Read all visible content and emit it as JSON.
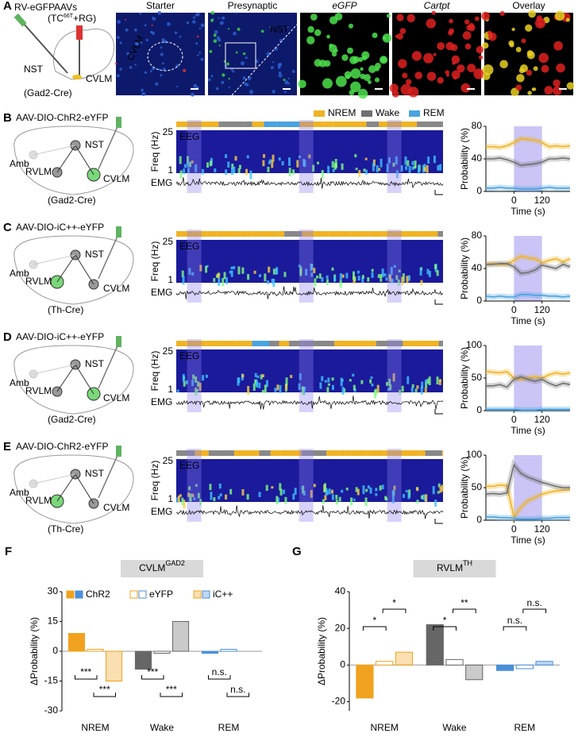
{
  "panel_a": {
    "label": "A",
    "virus": "RV-eGFP",
    "aavs": "AAVs",
    "aav_parts": [
      "(TC",
      "66T",
      "+RG)"
    ],
    "regions": [
      "NST",
      "CVLM"
    ],
    "driver": "(Gad2-Cre)",
    "images": [
      {
        "title": "Starter",
        "title_color": "#000000",
        "overlay": "CVLM"
      },
      {
        "title": "Presynaptic",
        "title_color": "#000000",
        "overlay": "NST"
      },
      {
        "title": "eGFP",
        "title_color": "#2a9d2a"
      },
      {
        "title": "Cartpt",
        "title_color": "#d01010"
      },
      {
        "title": "Overlay",
        "title_color": "#000000"
      }
    ]
  },
  "panels": [
    {
      "label": "B",
      "virus": "AAV-DIO-ChR2-eYFP",
      "driver": "(Gad2-Cre)",
      "regions": [
        {
          "name": "NST",
          "color": "#000000"
        },
        {
          "name": "RVLM",
          "color": "#000000"
        },
        {
          "name": "CVLM",
          "color": "#2a9d2a"
        },
        {
          "name": "Amb",
          "color": "#bbbbbb"
        }
      ]
    },
    {
      "label": "C",
      "virus": "AAV-DIO-iC++-eYFP",
      "driver": "(Th-Cre)",
      "regions": [
        {
          "name": "NST",
          "color": "#000000"
        },
        {
          "name": "RVLM",
          "color": "#2a9d2a"
        },
        {
          "name": "CVLM",
          "color": "#000000"
        },
        {
          "name": "Amb",
          "color": "#bbbbbb"
        }
      ]
    },
    {
      "label": "D",
      "virus": "AAV-DIO-iC++-eYFP",
      "driver": "(Gad2-Cre)",
      "regions": [
        {
          "name": "NST",
          "color": "#000000"
        },
        {
          "name": "RVLM",
          "color": "#000000"
        },
        {
          "name": "CVLM",
          "color": "#2a9d2a"
        },
        {
          "name": "Amb",
          "color": "#bbbbbb"
        }
      ]
    },
    {
      "label": "E",
      "virus": "AAV-DIO-ChR2-eYFP",
      "driver": "(Th-Cre)",
      "regions": [
        {
          "name": "NST",
          "color": "#000000"
        },
        {
          "name": "RVLM",
          "color": "#2a9d2a"
        },
        {
          "name": "CVLM",
          "color": "#000000"
        },
        {
          "name": "Amb",
          "color": "#bbbbbb"
        }
      ]
    }
  ],
  "spectrogram": {
    "freq_label": "Freq (Hz)",
    "freq_ticks": [
      25,
      1
    ],
    "eeg": "EEG",
    "emg": "EMG"
  },
  "chart_data": [
    {
      "type": "line",
      "x": [
        -120,
        -90,
        -60,
        -30,
        0,
        30,
        60,
        90,
        120,
        150,
        180,
        210,
        240
      ],
      "xlim": [
        -120,
        240
      ],
      "xticks": [
        0,
        120
      ],
      "stim_window": [
        0,
        120
      ],
      "ylim": [
        0,
        80
      ],
      "yticks": [
        0,
        40,
        80
      ],
      "xlabel": "Time (s)",
      "ylabel": "Probability (%)",
      "series": [
        {
          "name": "NREM",
          "color": "#f0b323",
          "values": [
            55,
            55,
            54,
            56,
            60,
            65,
            64,
            63,
            60,
            55,
            56,
            55,
            56
          ]
        },
        {
          "name": "Wake",
          "color": "#707070",
          "values": [
            40,
            40,
            41,
            39,
            36,
            32,
            33,
            34,
            36,
            40,
            40,
            41,
            40
          ]
        },
        {
          "name": "REM",
          "color": "#4aa3df",
          "values": [
            4,
            4,
            5,
            4,
            4,
            3,
            3,
            3,
            4,
            5,
            4,
            4,
            4
          ]
        }
      ]
    },
    {
      "type": "line",
      "x": [
        -120,
        -90,
        -60,
        -30,
        0,
        30,
        60,
        90,
        120,
        150,
        180,
        210,
        240
      ],
      "xlim": [
        -120,
        240
      ],
      "xticks": [
        0,
        120
      ],
      "stim_window": [
        0,
        120
      ],
      "ylim": [
        0,
        80
      ],
      "yticks": [
        0,
        40,
        80
      ],
      "xlabel": "Time (s)",
      "ylabel": "Probability (%)",
      "series": [
        {
          "name": "NREM",
          "color": "#f0b323",
          "values": [
            45,
            46,
            45,
            45,
            50,
            55,
            53,
            52,
            47,
            50,
            52,
            48,
            52
          ]
        },
        {
          "name": "Wake",
          "color": "#707070",
          "values": [
            45,
            45,
            46,
            46,
            42,
            34,
            35,
            38,
            44,
            42,
            40,
            45,
            42
          ]
        },
        {
          "name": "REM",
          "color": "#4aa3df",
          "values": [
            6,
            5,
            6,
            5,
            5,
            8,
            8,
            7,
            7,
            6,
            6,
            5,
            6
          ]
        }
      ]
    },
    {
      "type": "line",
      "x": [
        -120,
        -90,
        -60,
        -30,
        0,
        30,
        60,
        90,
        120,
        150,
        180,
        210,
        240
      ],
      "xlim": [
        -120,
        240
      ],
      "xticks": [
        0,
        120
      ],
      "stim_window": [
        0,
        120
      ],
      "ylim": [
        0,
        100
      ],
      "yticks": [
        0,
        50,
        100
      ],
      "xlabel": "Time (s)",
      "ylabel": "Probability (%)",
      "series": [
        {
          "name": "NREM",
          "color": "#f0b323",
          "values": [
            60,
            59,
            58,
            60,
            50,
            48,
            50,
            52,
            50,
            55,
            58,
            56,
            58
          ]
        },
        {
          "name": "Wake",
          "color": "#707070",
          "values": [
            38,
            38,
            40,
            36,
            48,
            52,
            48,
            45,
            48,
            42,
            38,
            42,
            40
          ]
        },
        {
          "name": "REM",
          "color": "#4aa3df",
          "values": [
            2,
            2,
            2,
            2,
            2,
            1,
            1,
            1,
            2,
            2,
            2,
            2,
            2
          ]
        }
      ]
    },
    {
      "type": "line",
      "x": [
        -120,
        -90,
        -60,
        -30,
        0,
        30,
        60,
        90,
        120,
        150,
        180,
        210,
        240
      ],
      "xlim": [
        -120,
        240
      ],
      "xticks": [
        0,
        120
      ],
      "stim_window": [
        0,
        120
      ],
      "ylim": [
        0,
        100
      ],
      "yticks": [
        0,
        50,
        100
      ],
      "xlabel": "Time (s)",
      "ylabel": "Probability (%)",
      "series": [
        {
          "name": "NREM",
          "color": "#f0b323",
          "values": [
            52,
            52,
            54,
            53,
            5,
            20,
            30,
            35,
            40,
            43,
            45,
            46,
            47
          ]
        },
        {
          "name": "Wake",
          "color": "#707070",
          "values": [
            40,
            41,
            40,
            42,
            85,
            72,
            66,
            62,
            58,
            55,
            52,
            50,
            50
          ]
        },
        {
          "name": "REM",
          "color": "#4aa3df",
          "values": [
            5,
            5,
            4,
            4,
            3,
            2,
            2,
            2,
            3,
            3,
            4,
            4,
            4
          ]
        }
      ]
    },
    {
      "type": "bar",
      "label": "F",
      "title": "CVLM",
      "title_sup": "GAD2",
      "ylabel": "ΔProbability (%)",
      "categories": [
        "NREM",
        "Wake",
        "REM"
      ],
      "category_colors": [
        "#f0a21e",
        "#666666",
        "#4a8fd9"
      ],
      "ylim": [
        -30,
        30
      ],
      "yticks": [
        -30,
        -15,
        0,
        15,
        30
      ],
      "legend": true,
      "series": [
        {
          "name": "ChR2",
          "values": [
            9,
            -9,
            -1
          ]
        },
        {
          "name": "eYFP",
          "values": [
            1,
            -1,
            1
          ]
        },
        {
          "name": "iC++",
          "values": [
            -15,
            15,
            0
          ]
        }
      ],
      "annotations": [
        [
          "***",
          "***"
        ],
        [
          "***",
          "***"
        ],
        [
          "n.s.",
          "n.s."
        ]
      ]
    },
    {
      "type": "bar",
      "label": "G",
      "title": "RVLM",
      "title_sup": "TH",
      "ylabel": "ΔProbability (%)",
      "categories": [
        "NREM",
        "Wake",
        "REM"
      ],
      "category_colors": [
        "#f0a21e",
        "#666666",
        "#4a8fd9"
      ],
      "ylim": [
        -25,
        40
      ],
      "yticks": [
        -20,
        0,
        20,
        40
      ],
      "legend": false,
      "series": [
        {
          "name": "ChR2",
          "values": [
            -18,
            22,
            -3
          ]
        },
        {
          "name": "eYFP",
          "values": [
            2,
            3,
            -2
          ]
        },
        {
          "name": "iC++",
          "values": [
            7,
            -8,
            2
          ]
        }
      ],
      "annotations": [
        [
          "*",
          "*"
        ],
        [
          "*",
          "**"
        ],
        [
          "n.s.",
          "n.s."
        ]
      ]
    }
  ]
}
